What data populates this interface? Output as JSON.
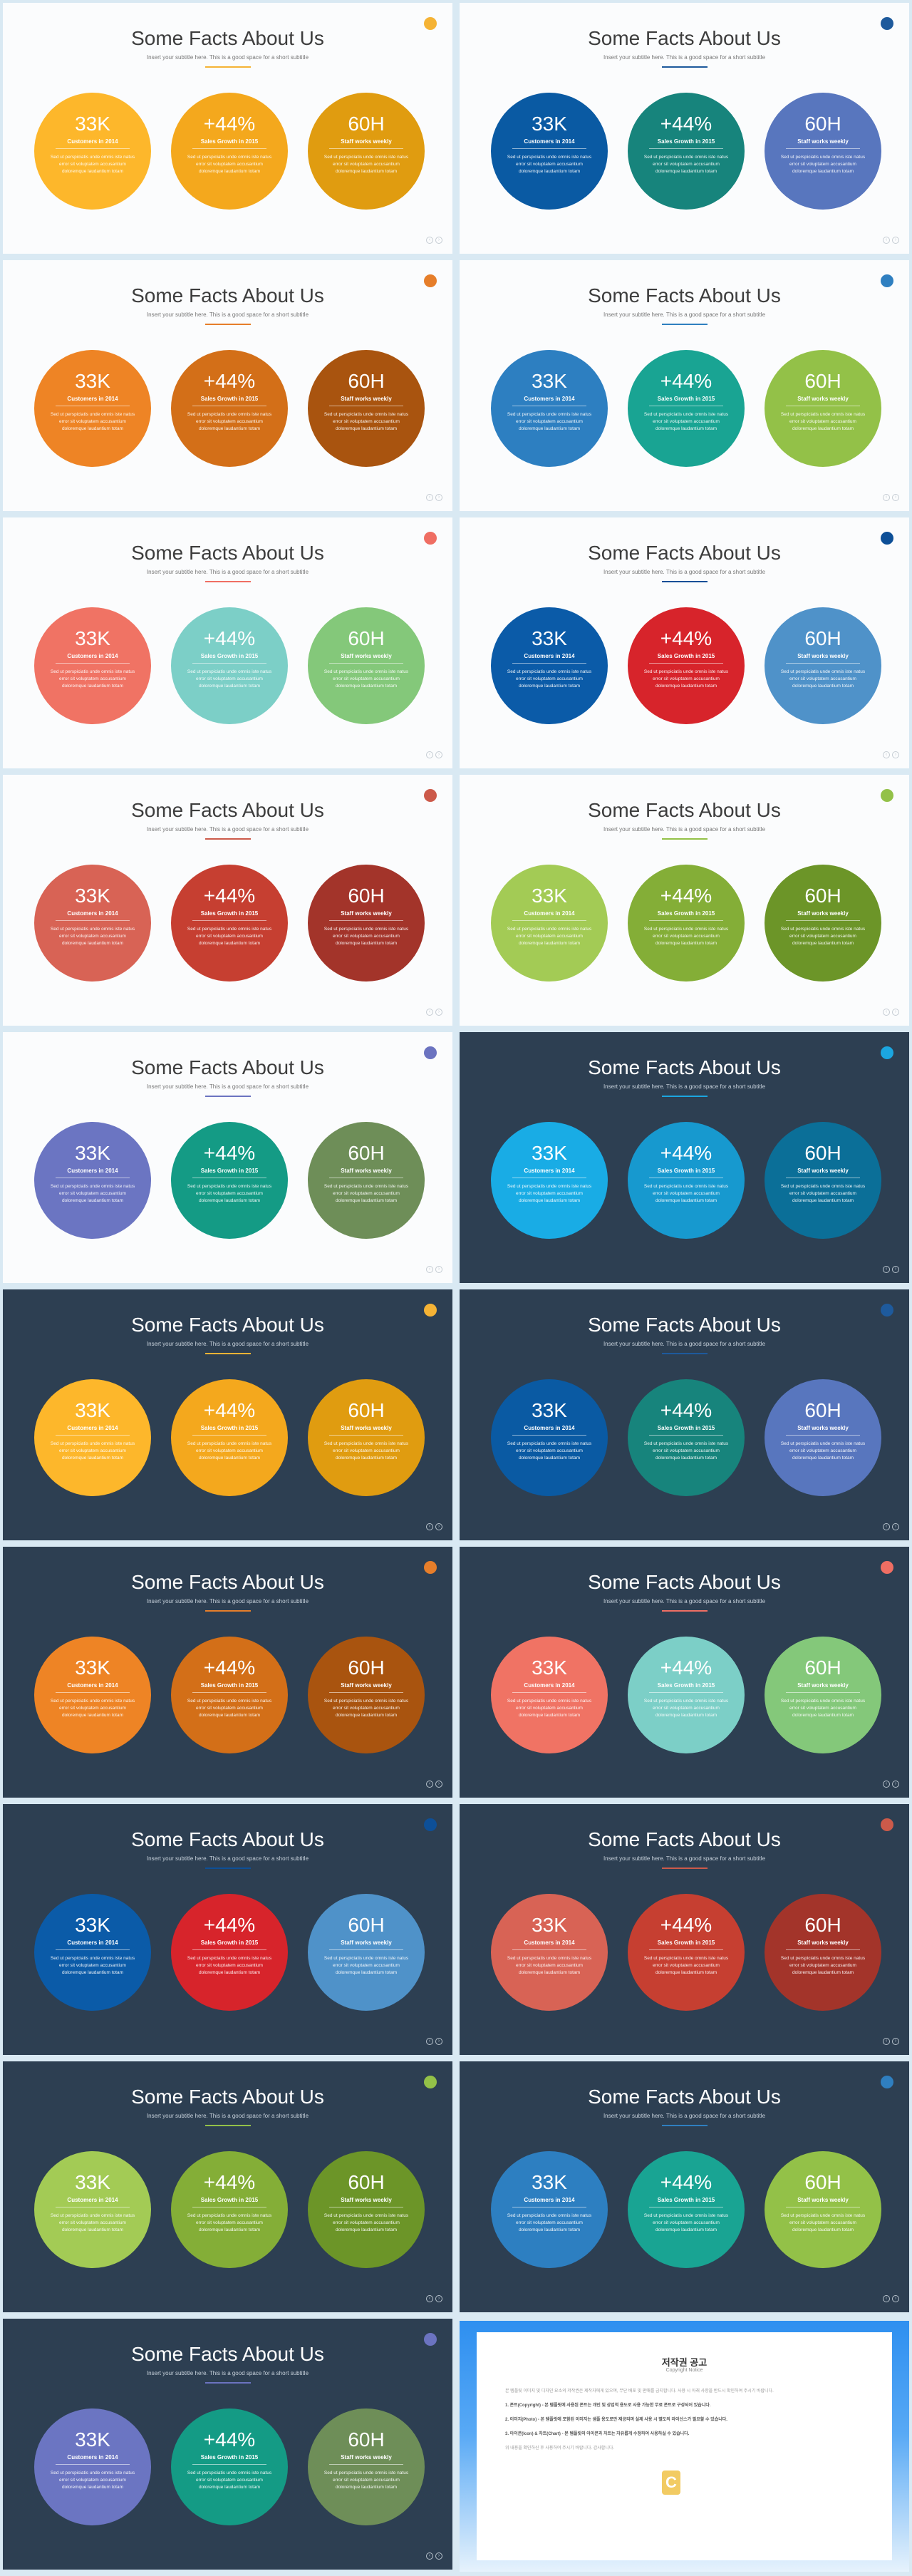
{
  "slides": {
    "title": "Some Facts About Us",
    "subtitle": "Insert your subtitle here. This is a good space for a short subtitle",
    "stats": [
      {
        "value": "33K",
        "label": "Customers in 2014"
      },
      {
        "value": "+44%",
        "label": "Sales Growth in 2015"
      },
      {
        "value": "60H",
        "label": "Staff works weekly"
      }
    ],
    "description": "Sed ut perspiciatis unde omnis iste natus error sit voluptatem accusantium doloremque laudantium totam",
    "nav": {
      "prev": "‹",
      "next": "›"
    }
  },
  "themes": [
    {
      "bg": "light",
      "accent": "#f5b335",
      "colors": [
        "#fdb72b",
        "#f4a81d",
        "#e09c10"
      ]
    },
    {
      "bg": "light",
      "accent": "#1e5a9c",
      "colors": [
        "#0a5aa3",
        "#17847c",
        "#5876be"
      ]
    },
    {
      "bg": "light",
      "accent": "#e67e2a",
      "colors": [
        "#ee8425",
        "#d36f18",
        "#a9540f"
      ]
    },
    {
      "bg": "light",
      "accent": "#2f7fc0",
      "colors": [
        "#2d7fc1",
        "#19a493",
        "#93c148"
      ]
    },
    {
      "bg": "light",
      "accent": "#ef6e63",
      "colors": [
        "#f07364",
        "#7ccfc7",
        "#84c87a"
      ]
    },
    {
      "bg": "light",
      "accent": "#0d4f97",
      "colors": [
        "#0b5ba8",
        "#d7242b",
        "#4f92c9"
      ]
    },
    {
      "bg": "light",
      "accent": "#cc5a4a",
      "colors": [
        "#d86355",
        "#c63f31",
        "#a3342a"
      ]
    },
    {
      "bg": "light",
      "accent": "#93c148",
      "colors": [
        "#a3cb55",
        "#84ae37",
        "#6c9528"
      ]
    },
    {
      "bg": "light",
      "accent": "#6b73c0",
      "colors": [
        "#6b75c2",
        "#149b85",
        "#6e8e58"
      ]
    },
    {
      "bg": "dark",
      "accent": "#1ba6e0",
      "colors": [
        "#19ace5",
        "#1799cf",
        "#0b6f98"
      ]
    },
    {
      "bg": "dark",
      "accent": "#f5b335",
      "colors": [
        "#fdb72b",
        "#f4a81d",
        "#e09c10"
      ]
    },
    {
      "bg": "dark",
      "accent": "#1e5a9c",
      "colors": [
        "#0a5aa3",
        "#17847c",
        "#5876be"
      ]
    },
    {
      "bg": "dark",
      "accent": "#e67e2a",
      "colors": [
        "#ee8425",
        "#d36f18",
        "#a9540f"
      ]
    },
    {
      "bg": "dark",
      "accent": "#ef6e63",
      "colors": [
        "#f07364",
        "#7ccfc7",
        "#84c87a"
      ]
    },
    {
      "bg": "dark",
      "accent": "#0d4f97",
      "colors": [
        "#0b5ba8",
        "#d7242b",
        "#4f92c9"
      ]
    },
    {
      "bg": "dark",
      "accent": "#cc5a4a",
      "colors": [
        "#d86355",
        "#c63f31",
        "#a3342a"
      ]
    },
    {
      "bg": "dark",
      "accent": "#93c148",
      "colors": [
        "#a3cb55",
        "#84ae37",
        "#6c9528"
      ]
    },
    {
      "bg": "dark",
      "accent": "#2f7fc0",
      "colors": [
        "#2d7fc1",
        "#19a493",
        "#93c148"
      ]
    },
    {
      "bg": "dark",
      "accent": "#6b73c0",
      "colors": [
        "#6b75c2",
        "#149b85",
        "#6e8e58"
      ]
    }
  ],
  "notice": {
    "title": "저작권 공고",
    "subtitle": "Copyright Notice",
    "paragraphs": [
      "본 템플릿 이미지 및 디자인 요소의 저작권은 제작자에게 있으며, 무단 배포 및 판매를 금지합니다. 사용 시 아래 사항을 반드시 확인하여 주시기 바랍니다.",
      "1. 폰트(Copyright) - 본 템플릿에 사용된 폰트는 개인 및 상업적 용도로 사용 가능한 무료 폰트로 구성되어 있습니다.",
      "2. 이미지(Photo) - 본 템플릿에 포함된 이미지는 샘플 용도로만 제공되며 실제 사용 시 별도의 라이선스가 필요할 수 있습니다.",
      "3. 아이콘(Icon) & 차트(Chart) - 본 템플릿의 아이콘과 차트는 자유롭게 수정하여 사용하실 수 있습니다.",
      "위 내용을 확인하신 후 사용하여 주시기 바랍니다. 감사합니다."
    ],
    "mark": "C"
  }
}
